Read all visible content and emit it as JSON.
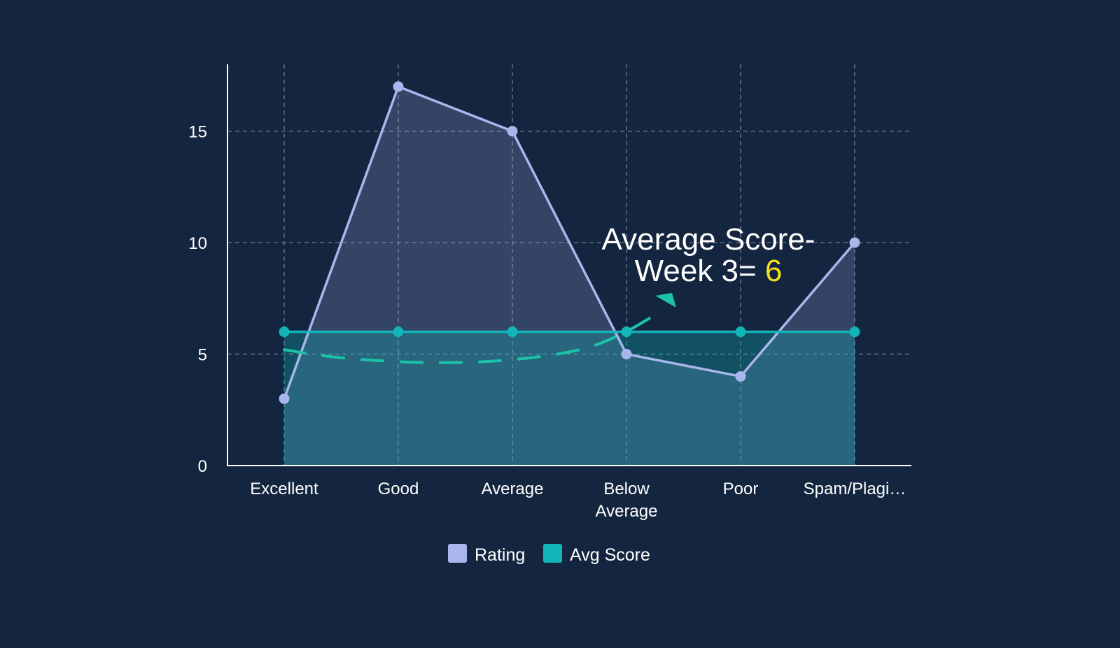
{
  "colors": {
    "background": "#13253f",
    "rating": "#a9b6ec",
    "avg_score": "#12b5b8",
    "annotation_arrow": "#1cc3a6",
    "annotation_highlight": "#f5e11d",
    "grid": "#6b7c95",
    "axis": "#ffffff"
  },
  "chart_data": {
    "type": "area",
    "title": "",
    "xlabel": "",
    "ylabel": "",
    "categories": [
      "Excellent",
      "Good",
      "Average",
      "Below Average",
      "Poor",
      "Spam/Plagi…"
    ],
    "category_display": [
      [
        "Excellent"
      ],
      [
        "Good"
      ],
      [
        "Average"
      ],
      [
        "Below",
        "Average"
      ],
      [
        "Poor"
      ],
      [
        "Spam/Plagi…"
      ]
    ],
    "ylim": [
      0,
      18
    ],
    "yticks": [
      0,
      5,
      10,
      15
    ],
    "ytick_labels": [
      "0",
      "5",
      "10",
      "15"
    ],
    "grid": true,
    "legend_position": "bottom-center",
    "series": [
      {
        "name": "Rating",
        "type": "area",
        "color": "#a9b6ec",
        "values": [
          3,
          17,
          15,
          5,
          4,
          10
        ]
      },
      {
        "name": "Avg Score",
        "type": "area",
        "color": "#12b5b8",
        "values": [
          6,
          6,
          6,
          6,
          6,
          6
        ]
      }
    ],
    "trend_curve": [
      [
        0,
        5.2
      ],
      [
        0.35,
        4.9
      ],
      [
        0.8,
        4.7
      ],
      [
        1.3,
        4.6
      ],
      [
        1.8,
        4.65
      ],
      [
        2.3,
        4.9
      ],
      [
        2.7,
        5.3
      ],
      [
        3.0,
        6.0
      ],
      [
        3.2,
        6.6
      ]
    ],
    "annotation": {
      "line1": "Average Score-",
      "line2_prefix": "Week 3= ",
      "value": "6"
    }
  }
}
